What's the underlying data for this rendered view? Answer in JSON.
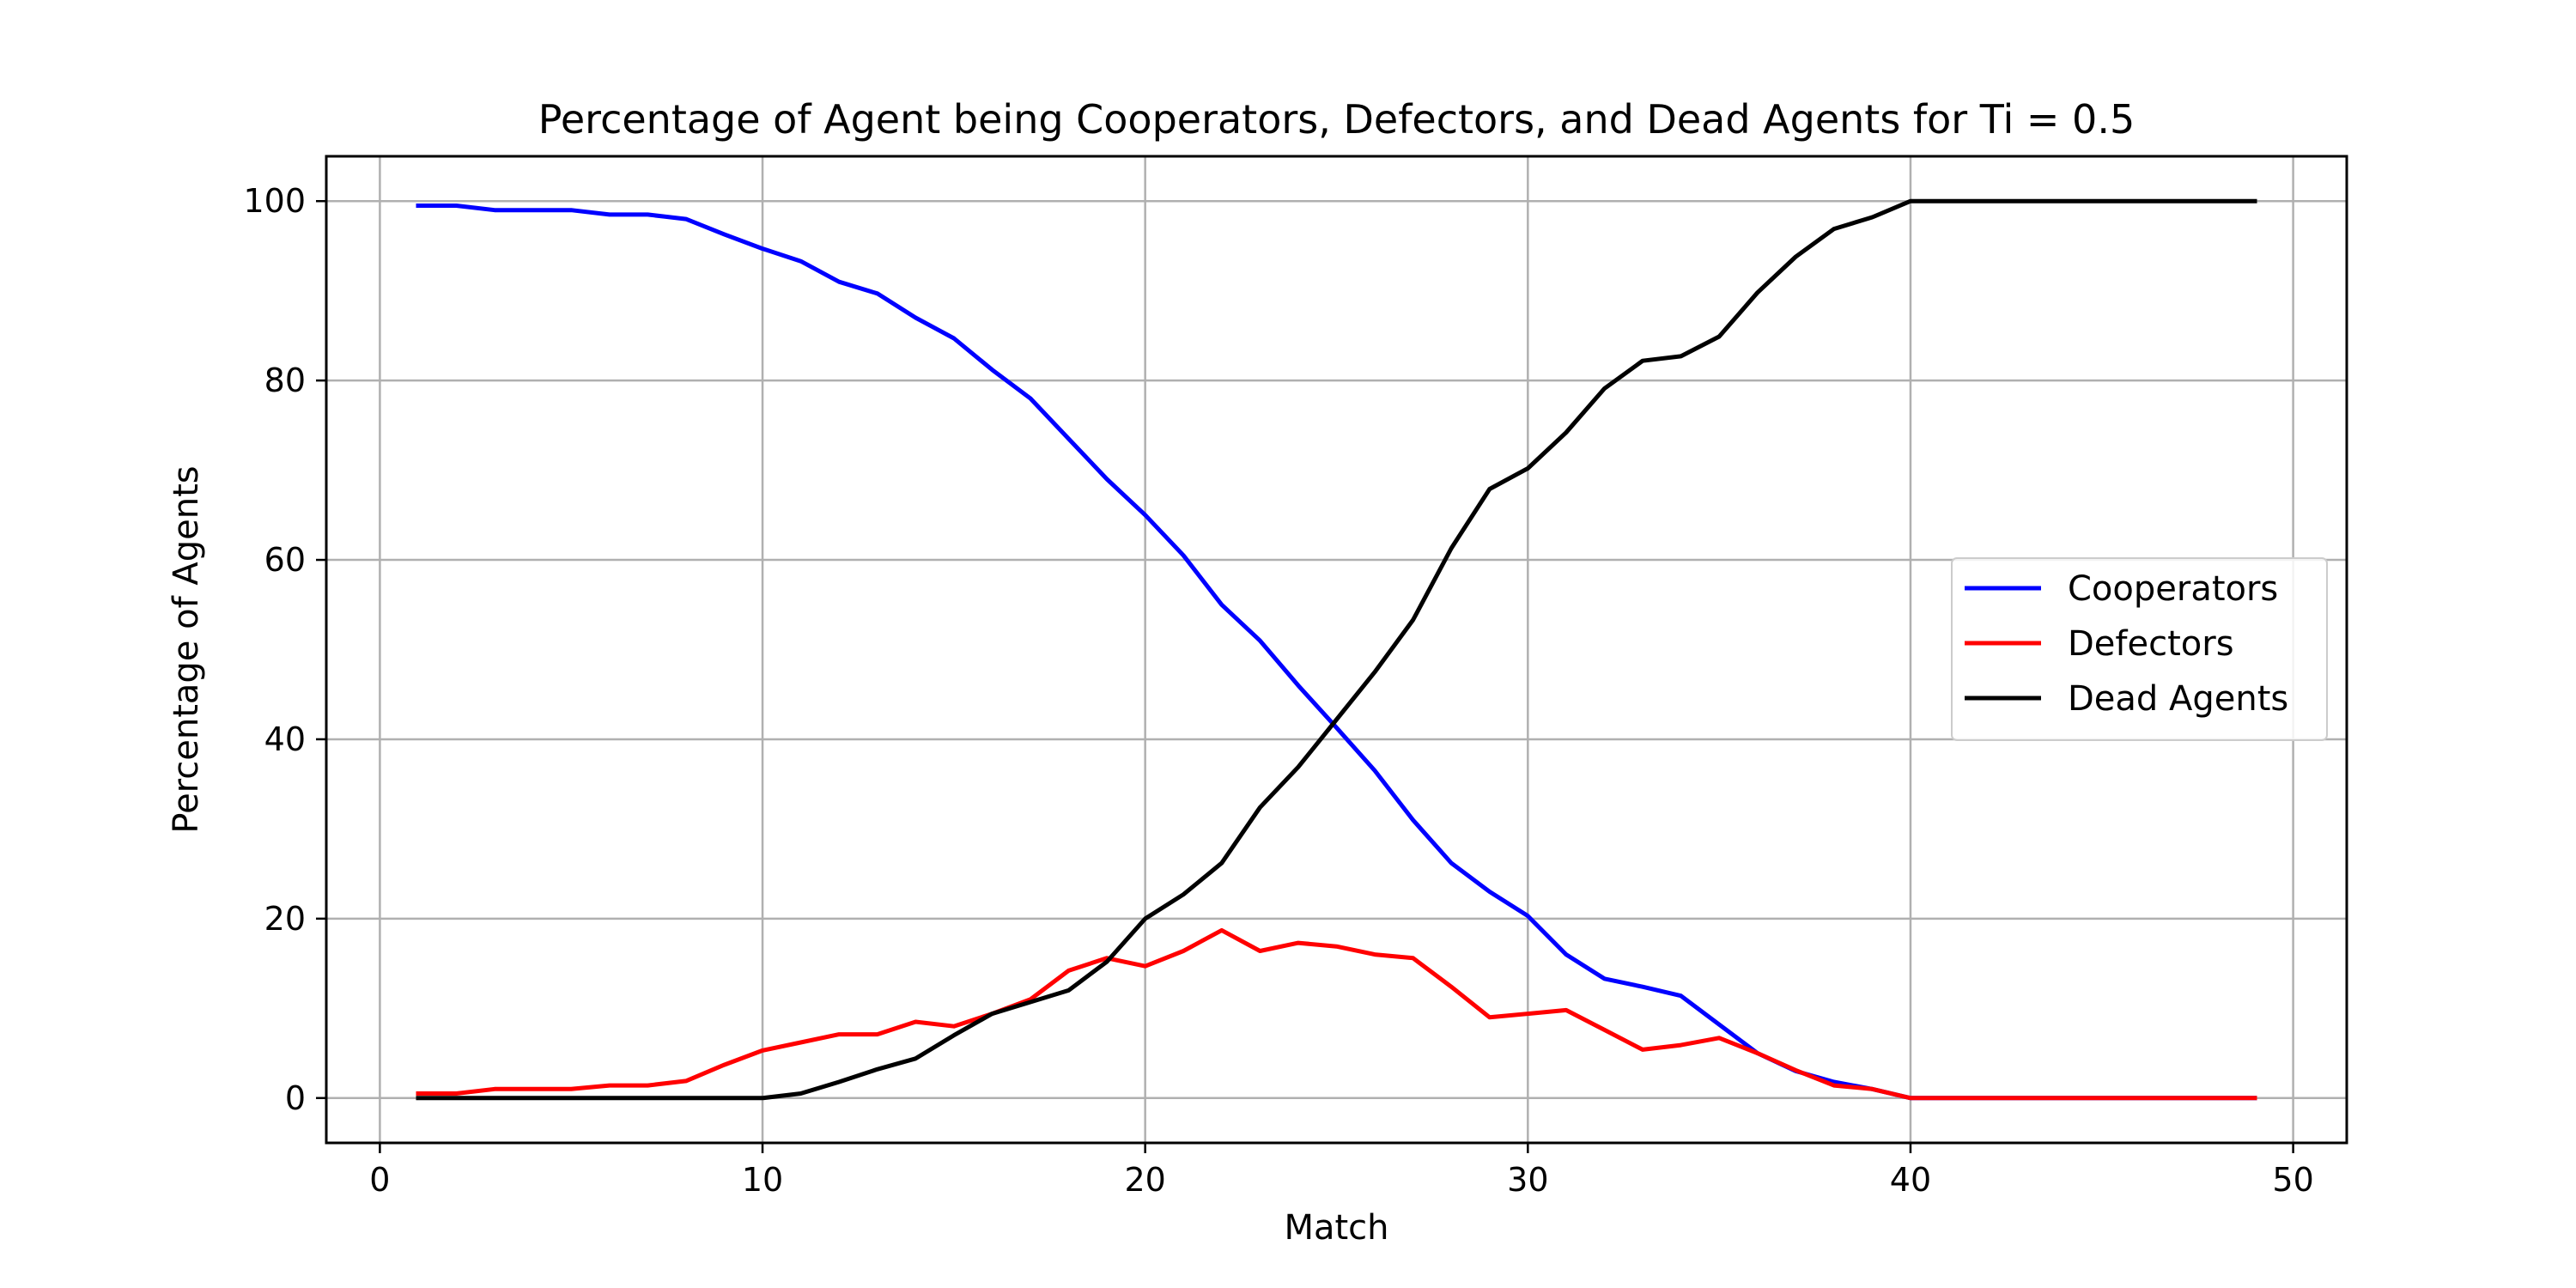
{
  "chart_data": {
    "type": "line",
    "title": "Percentage of Agent being Cooperators, Defectors, and Dead Agents for Ti = 0.5",
    "xlabel": "Match",
    "ylabel": "Percentage of Agents",
    "xlim": [
      -1.4,
      51.4
    ],
    "ylim": [
      -5,
      105
    ],
    "xticks": [
      0,
      10,
      20,
      30,
      40,
      50
    ],
    "yticks": [
      0,
      20,
      40,
      60,
      80,
      100
    ],
    "grid": true,
    "legend_position": "center-right",
    "x": [
      1,
      2,
      3,
      4,
      5,
      6,
      7,
      8,
      9,
      10,
      11,
      12,
      13,
      14,
      15,
      16,
      17,
      18,
      19,
      20,
      21,
      22,
      23,
      24,
      25,
      26,
      27,
      28,
      29,
      30,
      31,
      32,
      33,
      34,
      35,
      36,
      37,
      38,
      39,
      40,
      41,
      42,
      43,
      44,
      45,
      46,
      47,
      48,
      49
    ],
    "series": [
      {
        "name": "Cooperators",
        "color": "#0000ff",
        "values": [
          99.5,
          99.5,
          99,
          99,
          99,
          98.5,
          98.5,
          98,
          96.3,
          94.7,
          93.3,
          91,
          89.7,
          87,
          84.7,
          81.2,
          78,
          73.5,
          69,
          65,
          60.5,
          55,
          51,
          46,
          41.3,
          36.5,
          31,
          26.2,
          23,
          20.3,
          16,
          13.3,
          12.4,
          11.4,
          8.2,
          5,
          3,
          1.8,
          1,
          0,
          0,
          0,
          0,
          0,
          0,
          0,
          0,
          0,
          0
        ]
      },
      {
        "name": "Defectors",
        "color": "#ff0000",
        "values": [
          0.5,
          0.5,
          1,
          1,
          1,
          1.4,
          1.4,
          1.9,
          3.7,
          5.3,
          6.2,
          7.1,
          7.1,
          8.5,
          8,
          9.4,
          11,
          14.2,
          15.6,
          14.7,
          16.4,
          18.7,
          16.4,
          17.3,
          16.9,
          16,
          15.6,
          12.4,
          9,
          9.4,
          9.8,
          7.6,
          5.4,
          5.9,
          6.7,
          5,
          3.1,
          1.4,
          1,
          0,
          0,
          0,
          0,
          0,
          0,
          0,
          0,
          0,
          0
        ]
      },
      {
        "name": "Dead Agents",
        "color": "#000000",
        "values": [
          0,
          0,
          0,
          0,
          0,
          0,
          0,
          0,
          0,
          0,
          0.5,
          1.8,
          3.2,
          4.4,
          7,
          9.4,
          10.7,
          12,
          15.2,
          20,
          22.7,
          26.2,
          32.4,
          36.9,
          42.2,
          47.5,
          53.3,
          61.3,
          67.9,
          70.2,
          74.2,
          79.1,
          82.2,
          82.7,
          84.9,
          89.8,
          93.8,
          96.9,
          98.2,
          100,
          100,
          100,
          100,
          100,
          100,
          100,
          100,
          100,
          100
        ]
      }
    ]
  }
}
